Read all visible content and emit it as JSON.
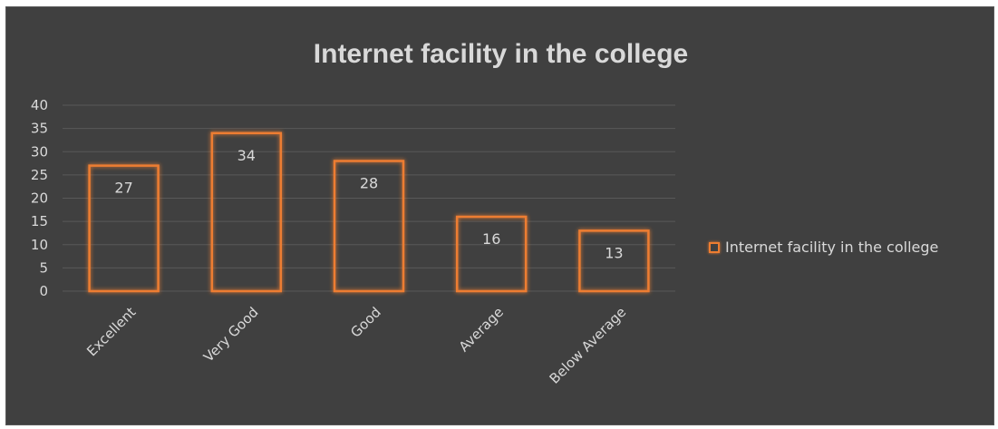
{
  "chart_data": {
    "type": "bar",
    "title": "Internet facility in the college",
    "categories": [
      "Excellent",
      "Very Good",
      "Good",
      "Average",
      "Below Average"
    ],
    "series": [
      {
        "name": "Internet facility in the college",
        "values": [
          27,
          34,
          28,
          16,
          13
        ]
      }
    ],
    "ylim": [
      0,
      40
    ],
    "yticks": [
      0,
      5,
      10,
      15,
      20,
      25,
      30,
      35,
      40
    ],
    "grid": true,
    "legend_position": "right",
    "bar_style": "outline",
    "colors": {
      "bar_stroke": "#ed7d31",
      "background": "#404040",
      "grid": "#595959",
      "text": "#d9d9d9"
    }
  }
}
